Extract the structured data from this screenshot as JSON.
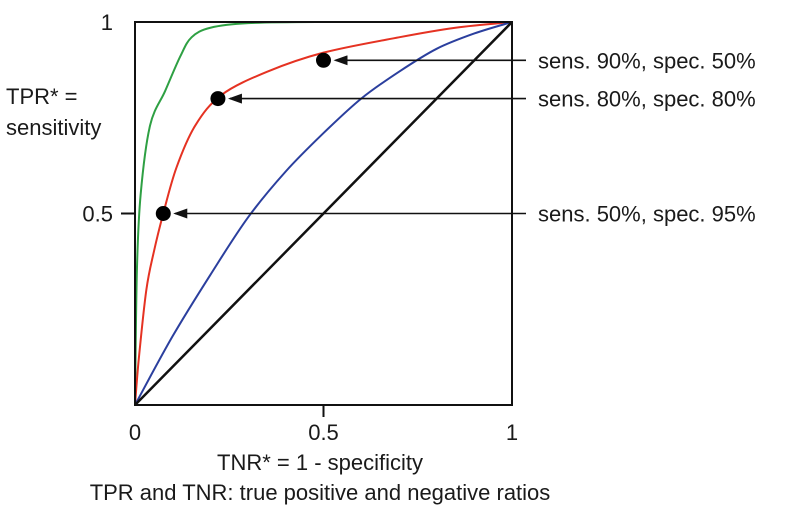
{
  "chart_data": {
    "type": "line",
    "xlabel": "TNR* = 1 - specificity",
    "ylabel_line1": "TPR* =",
    "ylabel_line2": "sensitivity",
    "footnote": "TPR and TNR: true positive and negative ratios",
    "xlim": [
      0,
      1
    ],
    "ylim": [
      0,
      1
    ],
    "x_ticks": [
      {
        "value": 0,
        "label": "0"
      },
      {
        "value": 0.5,
        "label": "0.5"
      },
      {
        "value": 1,
        "label": "1"
      }
    ],
    "y_ticks": [
      {
        "value": 0.5,
        "label": "0.5"
      },
      {
        "value": 1,
        "label": "1"
      }
    ],
    "grid": false,
    "series": [
      {
        "color": "#2ea043",
        "points": [
          [
            0,
            0
          ],
          [
            0.005,
            0.35
          ],
          [
            0.015,
            0.55
          ],
          [
            0.04,
            0.73
          ],
          [
            0.08,
            0.82
          ],
          [
            0.12,
            0.91
          ],
          [
            0.15,
            0.96
          ],
          [
            0.2,
            0.985
          ],
          [
            0.3,
            0.997
          ],
          [
            0.5,
            1
          ],
          [
            1,
            1
          ]
        ]
      },
      {
        "color": "#e53222",
        "points": [
          [
            0,
            0
          ],
          [
            0.01,
            0.12
          ],
          [
            0.03,
            0.3
          ],
          [
            0.05,
            0.4
          ],
          [
            0.075,
            0.5
          ],
          [
            0.11,
            0.62
          ],
          [
            0.16,
            0.73
          ],
          [
            0.23,
            0.81
          ],
          [
            0.35,
            0.87
          ],
          [
            0.5,
            0.92
          ],
          [
            0.7,
            0.96
          ],
          [
            0.85,
            0.985
          ],
          [
            1,
            1
          ]
        ]
      },
      {
        "color": "#2b3f9e",
        "points": [
          [
            0,
            0
          ],
          [
            0.1,
            0.18
          ],
          [
            0.2,
            0.34
          ],
          [
            0.3,
            0.49
          ],
          [
            0.4,
            0.61
          ],
          [
            0.5,
            0.71
          ],
          [
            0.6,
            0.8
          ],
          [
            0.7,
            0.87
          ],
          [
            0.8,
            0.93
          ],
          [
            0.9,
            0.97
          ],
          [
            1,
            1
          ]
        ]
      },
      {
        "color": "#111111",
        "points": [
          [
            0,
            0
          ],
          [
            1,
            1
          ]
        ]
      }
    ],
    "annotations": [
      {
        "x": 0.5,
        "y": 0.9,
        "label": "sens. 90%, spec. 50%"
      },
      {
        "x": 0.22,
        "y": 0.8,
        "label": "sens. 80%, spec. 80%"
      },
      {
        "x": 0.075,
        "y": 0.5,
        "label": "sens. 50%, spec. 95%"
      }
    ]
  }
}
